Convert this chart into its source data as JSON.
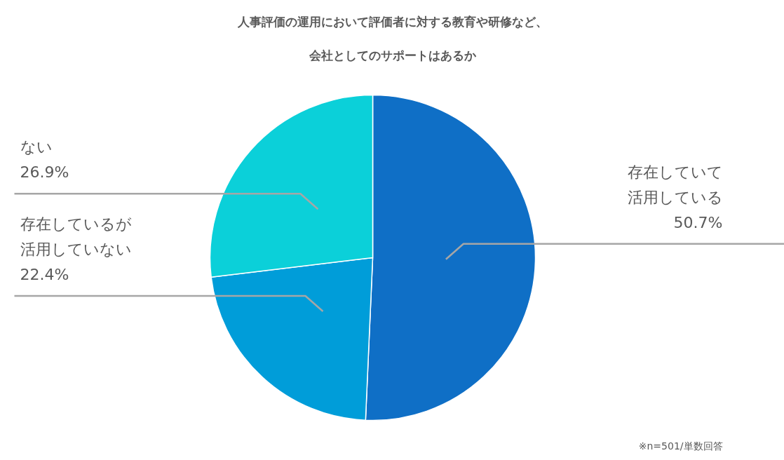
{
  "chart_data": {
    "type": "pie",
    "title": "人事評価の運用において評価者に対する教育や研修など、会社としてのサポートはあるか",
    "categories": [
      "存在していて活用している",
      "存在しているが活用していない",
      "ない"
    ],
    "values": [
      50.7,
      22.4,
      26.9
    ],
    "value_labels": [
      "50.7%",
      "22.4%",
      "26.9%"
    ],
    "colors": [
      "#0f6fc6",
      "#009dd9",
      "#0bd0d9"
    ],
    "annotations": [
      "※n=501/単数回答"
    ]
  }
}
